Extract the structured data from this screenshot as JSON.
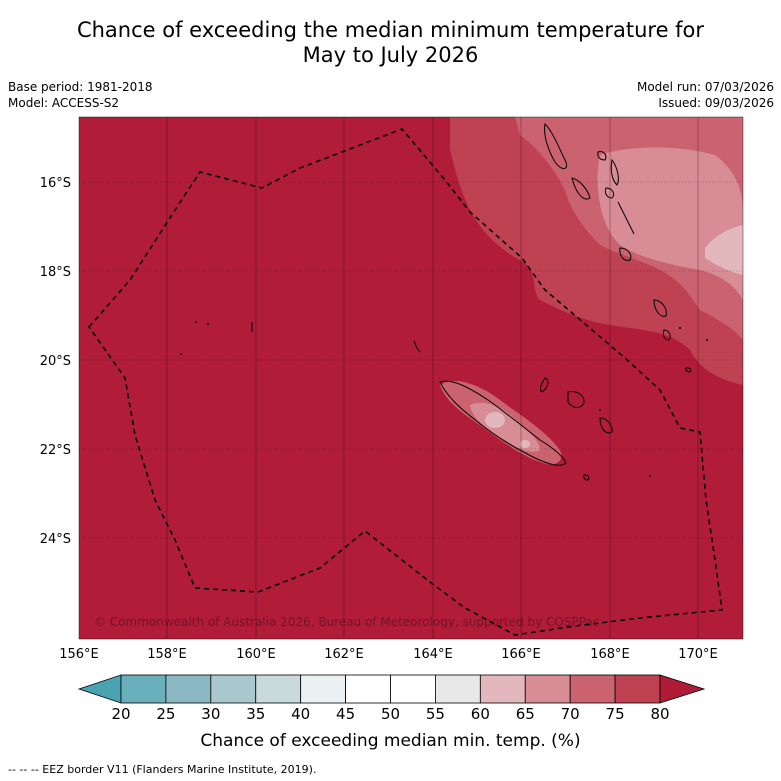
{
  "title_line1": "Chance of exceeding the median minimum temperature for",
  "title_line2": "May to July 2026",
  "base_period": "Base period: 1981-2018",
  "model": "Model: ACCESS-S2",
  "model_run": "Model run: 07/03/2026",
  "issued": "Issued: 09/03/2026",
  "lat_labels": [
    "16°S",
    "18°S",
    "20°S",
    "22°S",
    "24°S"
  ],
  "lon_labels": [
    "156°E",
    "158°E",
    "160°E",
    "162°E",
    "164°E",
    "166°E",
    "168°E",
    "170°E"
  ],
  "copyright": "© Commonwealth of Australia 2026, Bureau of Meteorology, supported by COSPPac",
  "colorbar": {
    "ticks": [
      "20",
      "25",
      "30",
      "35",
      "40",
      "45",
      "50",
      "55",
      "60",
      "65",
      "70",
      "75",
      "80"
    ],
    "colors": [
      "#6aafbc",
      "#8ab8c3",
      "#a9c8cd",
      "#c9dadd",
      "#ebf1f2",
      "#ffffff",
      "#ffffff",
      "#e8e8e8",
      "#e2b8bc",
      "#d88c96",
      "#cb6270",
      "#bf4252"
    ],
    "low_color": "#4aa3b1",
    "high_color": "#b01c37",
    "label": "Chance of exceeding median min. temp. (%)"
  },
  "footnote": "--  --  -- EEZ border V11 (Flanders Marine Institute, 2019).",
  "colors": {
    "base": "#b11d39",
    "c75": "#bf4252",
    "c70": "#cb6270",
    "c65": "#d88c96",
    "c60": "#e2b8bc"
  }
}
